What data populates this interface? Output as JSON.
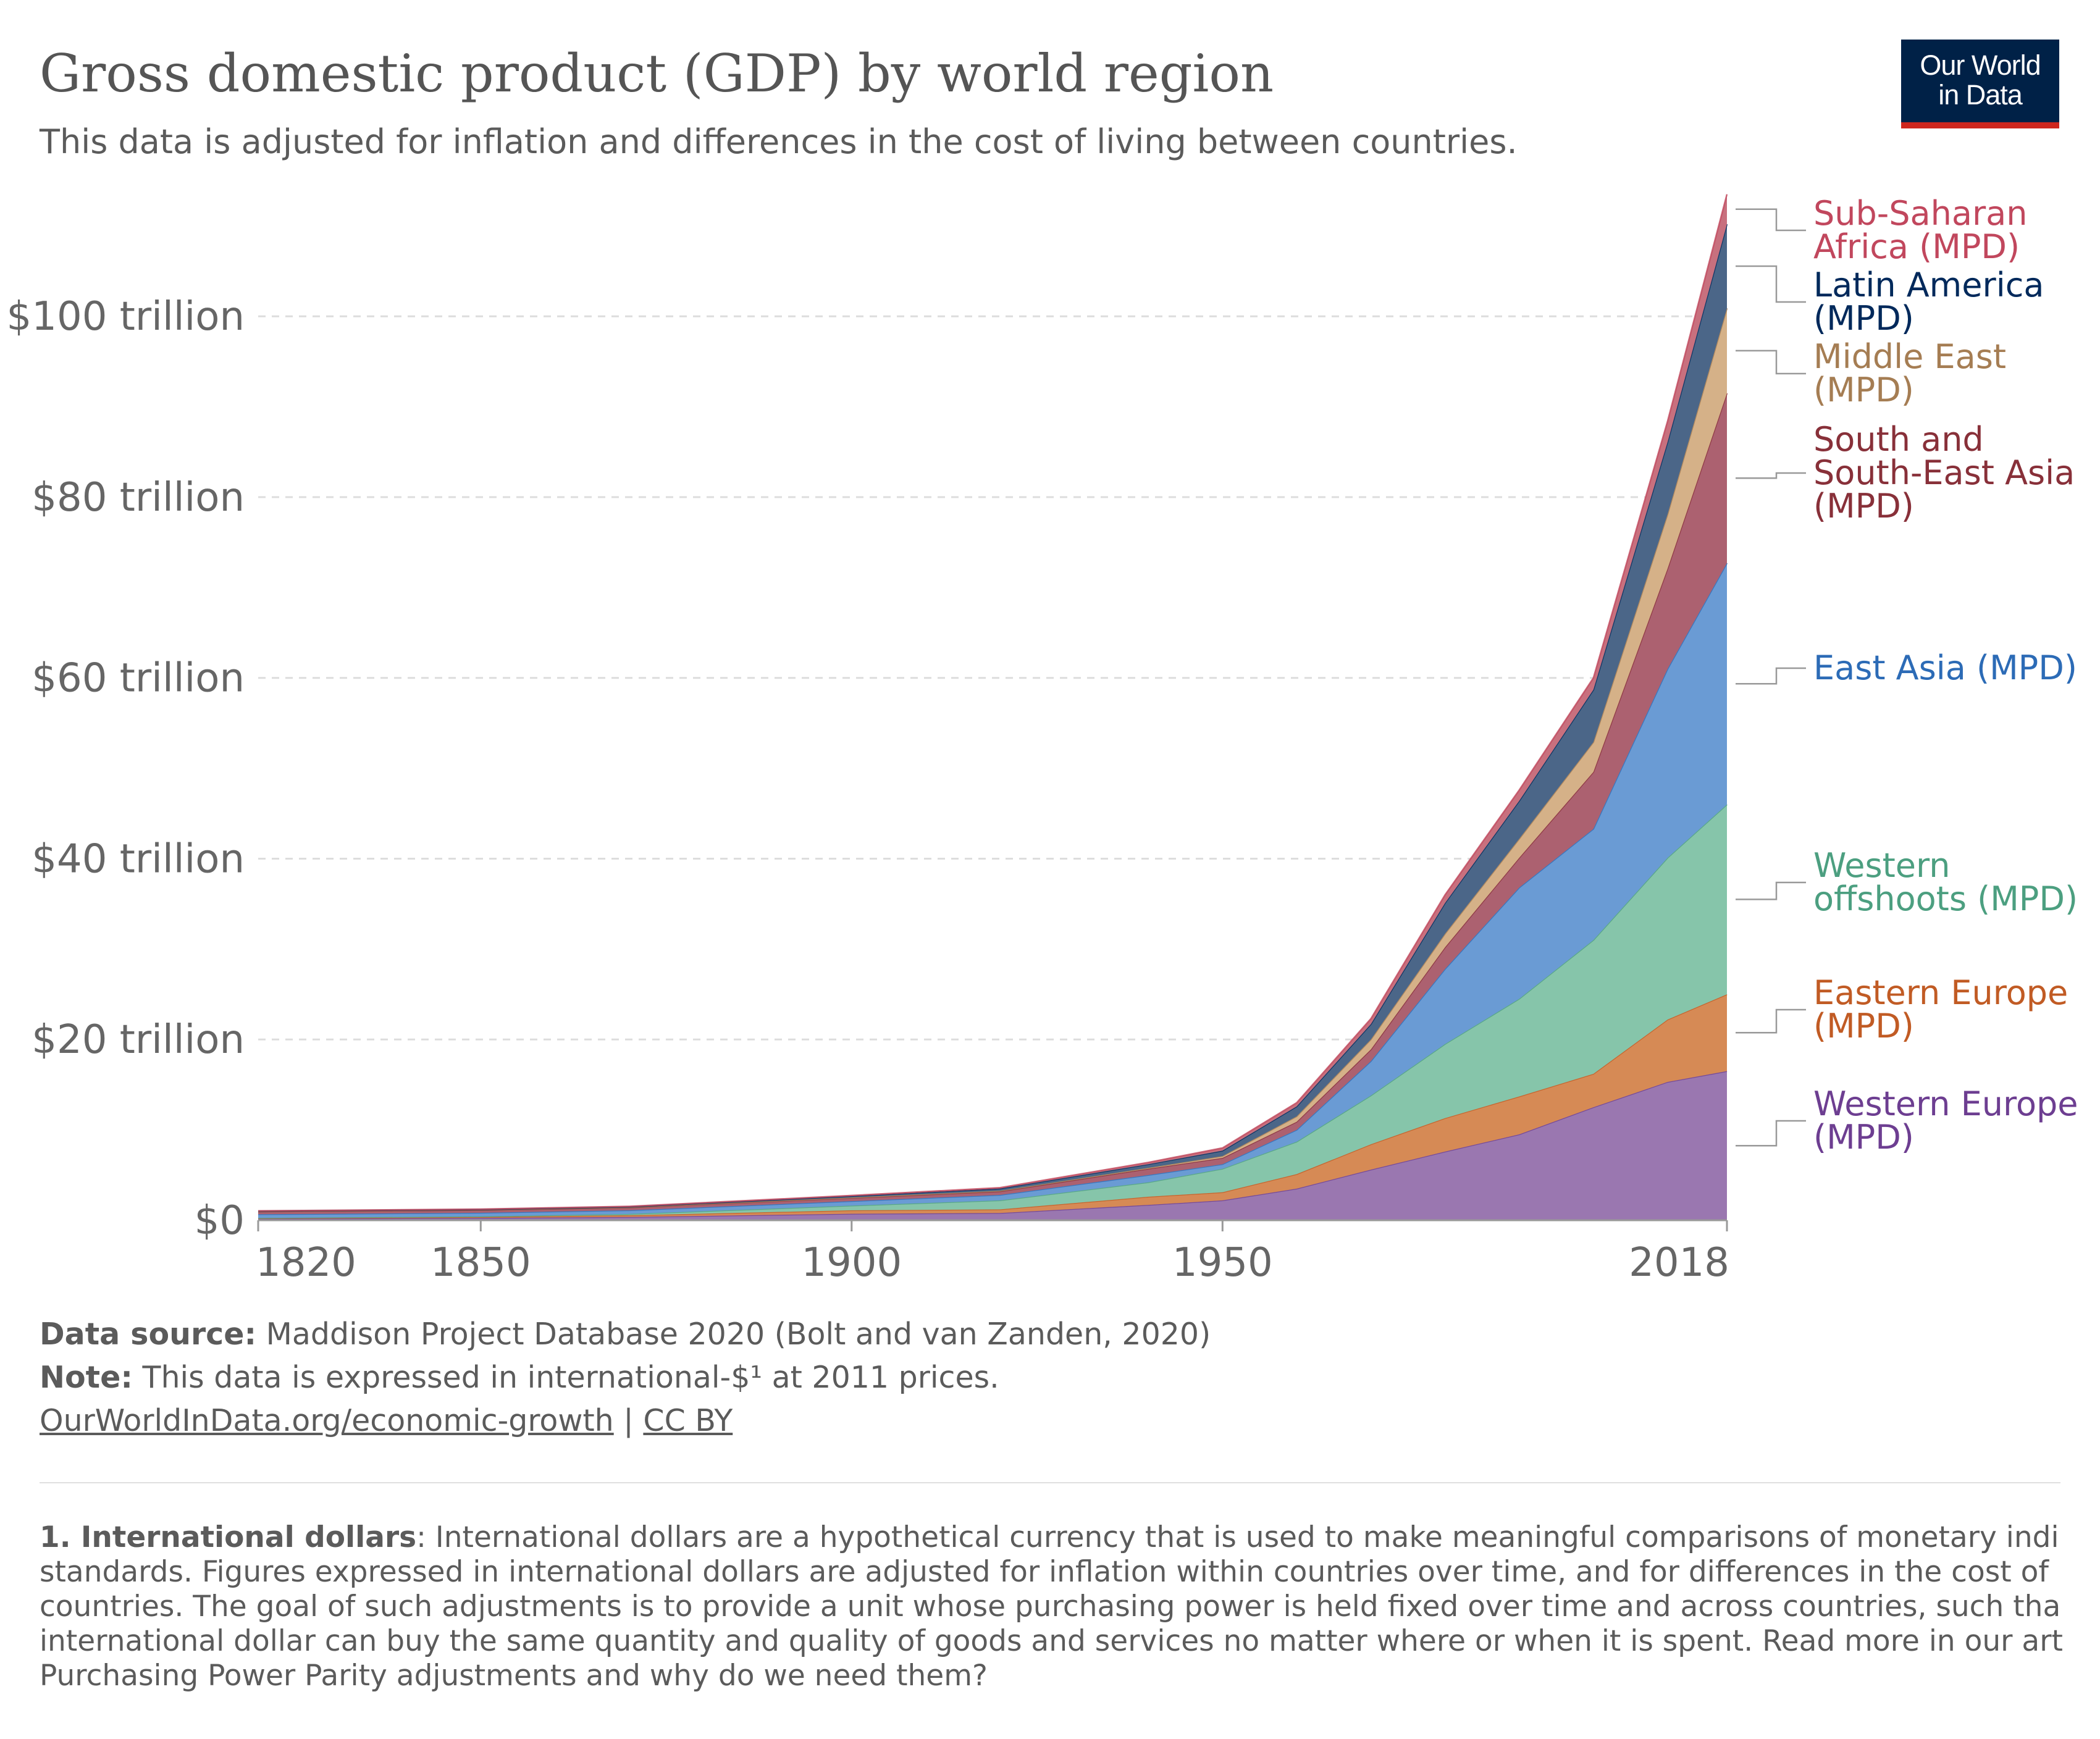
{
  "header": {
    "title": "Gross domestic product (GDP) by world region",
    "subtitle": "This data is adjusted for inflation and differences in the cost of living between countries."
  },
  "logo": {
    "line1": "Our World",
    "line2": "in Data",
    "bg_color": "#002147",
    "accent_color": "#ce261e"
  },
  "chart_data": {
    "type": "area",
    "stacked": true,
    "title": "Gross domestic product (GDP) by world region",
    "xlabel": "",
    "ylabel": "",
    "x": [
      1820,
      1850,
      1870,
      1900,
      1920,
      1940,
      1950,
      1960,
      1970,
      1980,
      1990,
      2000,
      2010,
      2018
    ],
    "x_ticks": [
      "1820",
      "1850",
      "1900",
      "1950",
      "2018"
    ],
    "x_tick_values": [
      1820,
      1850,
      1900,
      1950,
      2018
    ],
    "xlim": [
      1820,
      2018
    ],
    "y_ticks": [
      "$0",
      "$20 trillion",
      "$40 trillion",
      "$60 trillion",
      "$80 trillion",
      "$100 trillion"
    ],
    "y_tick_values": [
      0,
      20,
      40,
      60,
      80,
      100
    ],
    "ylim": [
      0,
      114
    ],
    "grid": true,
    "legend_placement": "right",
    "series": [
      {
        "name": "Western Europe (MPD)",
        "color": "#9a77b0",
        "values": [
          0.16,
          0.25,
          0.37,
          0.72,
          0.8,
          1.7,
          2.2,
          3.5,
          5.6,
          7.6,
          9.5,
          12.5,
          15.3,
          16.5
        ]
      },
      {
        "name": "Eastern Europe (MPD)",
        "color": "#d68a55",
        "values": [
          0.08,
          0.12,
          0.18,
          0.38,
          0.4,
          0.9,
          0.9,
          1.6,
          2.8,
          3.7,
          4.2,
          3.7,
          6.9,
          8.5
        ]
      },
      {
        "name": "Western offshoots (MPD)",
        "color": "#86c5aa",
        "values": [
          0.02,
          0.06,
          0.15,
          0.52,
          1.0,
          1.6,
          2.6,
          3.6,
          5.4,
          8.2,
          10.8,
          14.8,
          17.9,
          21.0
        ]
      },
      {
        "name": "East Asia (MPD)",
        "color": "#6a9bd4",
        "values": [
          0.4,
          0.4,
          0.4,
          0.5,
          0.6,
          0.8,
          0.5,
          1.3,
          3.8,
          8.3,
          12.3,
          12.3,
          20.9,
          26.7
        ]
      },
      {
        "name": "South and South-East Asia (MPD)",
        "color": "#ac6170",
        "values": [
          0.3,
          0.3,
          0.3,
          0.35,
          0.4,
          0.7,
          0.7,
          0.9,
          1.3,
          2.4,
          3.3,
          6.3,
          11.1,
          18.8
        ]
      },
      {
        "name": "Middle East (MPD)",
        "color": "#d5b188",
        "values": [
          0.02,
          0.02,
          0.03,
          0.05,
          0.06,
          0.1,
          0.2,
          0.6,
          1.1,
          1.5,
          2.1,
          3.3,
          6.0,
          9.4
        ]
      },
      {
        "name": "Latin America (MPD)",
        "color": "#4b6688",
        "values": [
          0.03,
          0.04,
          0.06,
          0.15,
          0.25,
          0.4,
          0.6,
          1.1,
          1.7,
          3.4,
          4.2,
          5.8,
          8.0,
          9.3
        ]
      },
      {
        "name": "Sub-Saharan Africa (MPD)",
        "color": "#c8707e",
        "values": [
          0.03,
          0.04,
          0.05,
          0.07,
          0.1,
          0.2,
          0.3,
          0.4,
          0.6,
          0.9,
          1.2,
          1.3,
          2.3,
          3.3
        ]
      }
    ],
    "label_colors": {
      "Western Europe (MPD)": "#6d3e91",
      "Eastern Europe (MPD)": "#c15b24",
      "Western offshoots (MPD)": "#4c9f80",
      "East Asia (MPD)": "#2c6bb6",
      "South and South-East Asia (MPD)": "#883039",
      "Middle East (MPD)": "#a57d53",
      "Latin America (MPD)": "#00295b",
      "Sub-Saharan Africa (MPD)": "#c1475d"
    },
    "legend_labels": [
      {
        "series": "Sub-Saharan Africa (MPD)",
        "lines": [
          "Sub-Saharan",
          "Africa (MPD)"
        ]
      },
      {
        "series": "Latin America (MPD)",
        "lines": [
          "Latin America",
          "(MPD)"
        ]
      },
      {
        "series": "Middle East (MPD)",
        "lines": [
          "Middle East",
          "(MPD)"
        ]
      },
      {
        "series": "South and South-East Asia (MPD)",
        "lines": [
          "South and",
          "South-East Asia",
          "(MPD)"
        ]
      },
      {
        "series": "East Asia (MPD)",
        "lines": [
          "East Asia (MPD)"
        ]
      },
      {
        "series": "Western offshoots (MPD)",
        "lines": [
          "Western",
          "offshoots (MPD)"
        ]
      },
      {
        "series": "Eastern Europe (MPD)",
        "lines": [
          "Eastern Europe",
          "(MPD)"
        ]
      },
      {
        "series": "Western Europe (MPD)",
        "lines": [
          "Western Europe",
          "(MPD)"
        ]
      }
    ]
  },
  "footer": {
    "source_label": "Data source:",
    "source_text": " Maddison Project Database 2020 (Bolt and van Zanden, 2020)",
    "note_label": "Note:",
    "note_text": " This data is expressed in international-$¹ at 2011 prices.",
    "link": "OurWorldInData.org/economic-growth",
    "separator": " | ",
    "license": "CC BY"
  },
  "footnote": {
    "label": "1. International dollars",
    "lines": [
      ": International dollars are a hypothetical currency that is used to make meaningful comparisons of monetary indi",
      "standards. Figures expressed in international dollars are adjusted for inflation within countries over time, and for differences in the cost of",
      "countries. The goal of such adjustments is to provide a unit whose purchasing power is held fixed over time and across countries, such tha",
      "international dollar can buy the same quantity and quality of goods and services no matter where or when it is spent. Read more in our art",
      "Purchasing Power Parity adjustments and why do we need them?"
    ]
  }
}
